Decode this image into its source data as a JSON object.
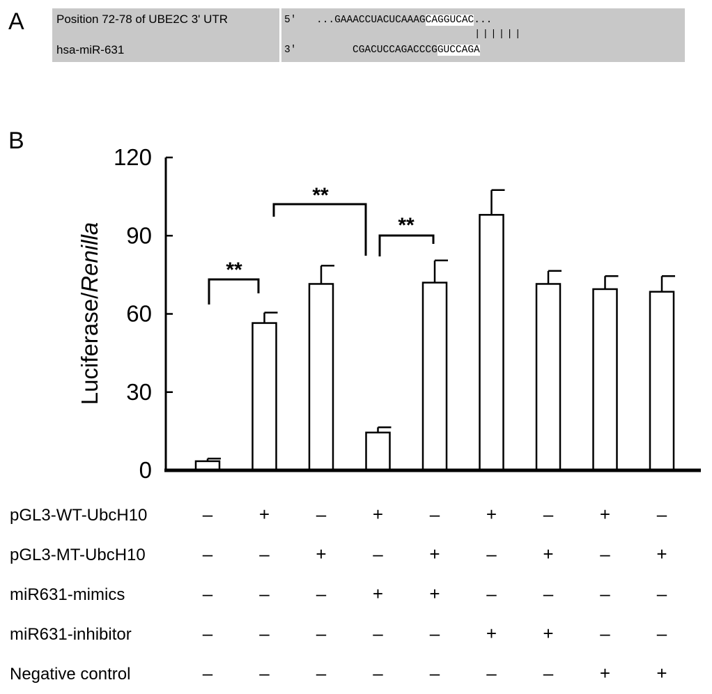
{
  "panel_a": {
    "letter": "A",
    "row1_label": "Position 72-78 of UBE2C 3' UTR",
    "row2_label": "hsa-miR-631",
    "utr_prime": "5'",
    "utr_prefix": "...GAAACCUACUCAAAG",
    "utr_seed": "CAGGUCAC",
    "utr_suffix": "...",
    "pairing": "||||||",
    "mir_prime": "3'",
    "mir_prefix": "CGACUCCAGACCCG",
    "mir_seed": "GUCCAGA"
  },
  "panel_b": {
    "letter": "B",
    "ylabel_plain": "Luciferase/",
    "ylabel_italic": "Renilla",
    "significance": [
      "**",
      "**",
      "**"
    ],
    "condition_rows": [
      {
        "label": "pGL3-WT-UbcH10",
        "marks": [
          "–",
          "+",
          "–",
          "+",
          "–",
          "+",
          "–",
          "+",
          "–"
        ]
      },
      {
        "label": "pGL3-MT-UbcH10",
        "marks": [
          "–",
          "–",
          "+",
          "–",
          "+",
          "–",
          "+",
          "–",
          "+"
        ]
      },
      {
        "label": "miR631-mimics",
        "marks": [
          "–",
          "–",
          "–",
          "+",
          "+",
          "–",
          "–",
          "–",
          "–"
        ]
      },
      {
        "label": "miR631-inhibitor",
        "marks": [
          "–",
          "–",
          "–",
          "–",
          "–",
          "+",
          "+",
          "–",
          "–"
        ]
      },
      {
        "label": "Negative control",
        "marks": [
          "–",
          "–",
          "–",
          "–",
          "–",
          "–",
          "–",
          "+",
          "+"
        ]
      }
    ]
  },
  "chart_data": {
    "type": "bar",
    "categories": [
      "1",
      "2",
      "3",
      "4",
      "5",
      "6",
      "7",
      "8",
      "9"
    ],
    "values": [
      3.5,
      56.5,
      71.5,
      14.5,
      72,
      98,
      71.5,
      69.5,
      68.5
    ],
    "errors": [
      1,
      4,
      7,
      2,
      8.5,
      9.5,
      5,
      5,
      6
    ],
    "ylim": [
      0,
      120
    ],
    "yticks": [
      0,
      30,
      60,
      90,
      120
    ],
    "xlabel": "",
    "ylabel": "Luciferase/Renilla",
    "bar_fill": "#ffffff",
    "bar_stroke": "#000000",
    "significance_brackets": [
      {
        "from": 1,
        "to": 2,
        "label": "**"
      },
      {
        "from": 2,
        "to": 4,
        "label": "**"
      },
      {
        "from": 4,
        "to": 5,
        "label": "**"
      }
    ]
  }
}
